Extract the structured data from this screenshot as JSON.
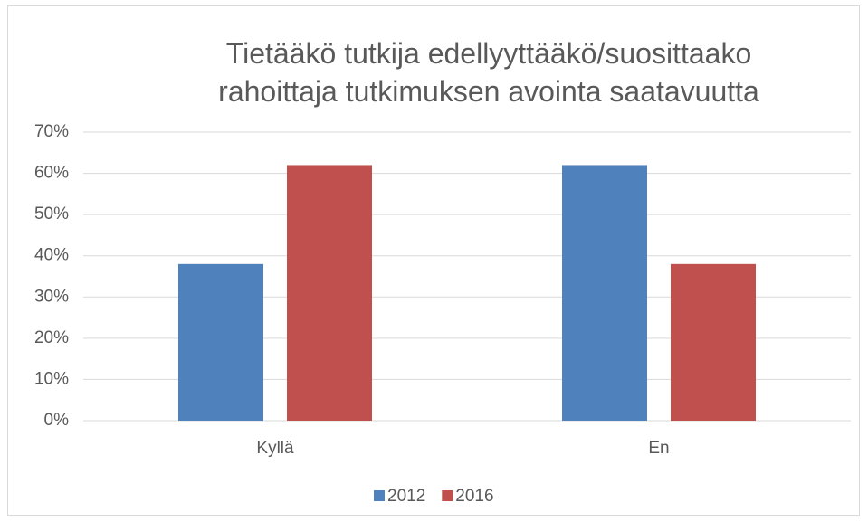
{
  "chart_data": {
    "type": "bar",
    "title": "Tietääkö tutkija edellyyttääkö/suosittaako rahoittaja tutkimuksen avointa saatavuutta",
    "categories": [
      "Kyllä",
      "En"
    ],
    "series": [
      {
        "name": "2012",
        "color": "#4f81bd",
        "values": [
          38,
          62
        ]
      },
      {
        "name": "2016",
        "color": "#c0504d",
        "values": [
          62,
          38
        ]
      }
    ],
    "ylim": [
      0,
      70
    ],
    "yticks": [
      {
        "value": 0,
        "label": "0%"
      },
      {
        "value": 10,
        "label": "10%"
      },
      {
        "value": 20,
        "label": "20%"
      },
      {
        "value": 30,
        "label": "30%"
      },
      {
        "value": 40,
        "label": "40%"
      },
      {
        "value": 50,
        "label": "50%"
      },
      {
        "value": 60,
        "label": "60%"
      },
      {
        "value": 70,
        "label": "70%"
      }
    ],
    "grid": true,
    "legend": "bottom"
  }
}
